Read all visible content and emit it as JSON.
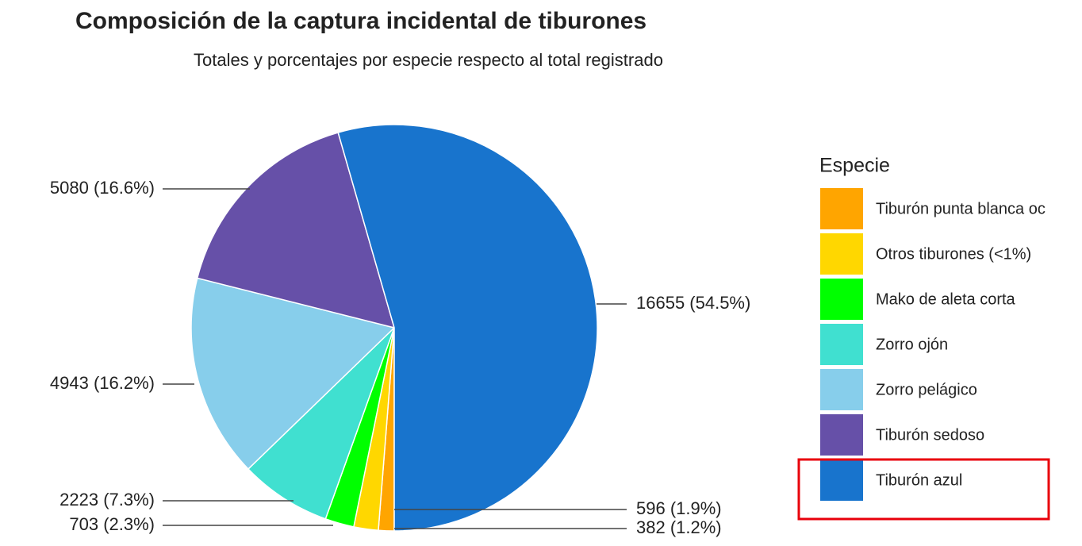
{
  "chart_data": {
    "type": "pie",
    "title": "Composición de la captura incidental de tiburones",
    "subtitle": "Totales y porcentajes por especie respecto al total registrado",
    "legend_title": "Especie",
    "legend": "right",
    "categories": [
      "Tiburón punta blanca oc",
      "Otros tiburones (<1%)",
      "Mako de aleta corta",
      "Zorro ojón",
      "Zorro pelágico",
      "Tiburón sedoso",
      "Tiburón azul"
    ],
    "values": [
      382,
      596,
      703,
      2223,
      4943,
      5080,
      16655
    ],
    "value_labels": [
      "382 (1.2%)",
      "596 (1.9%)",
      "703 (2.3%)",
      "2223 (7.3%)",
      "4943 (16.2%)",
      "5080 (16.6%)",
      "16655 (54.5%)"
    ],
    "colors": [
      "#FFA500",
      "#FFD700",
      "#00FF00",
      "#40E0D0",
      "#87CEEB",
      "#6650A8",
      "#1874CD"
    ]
  }
}
